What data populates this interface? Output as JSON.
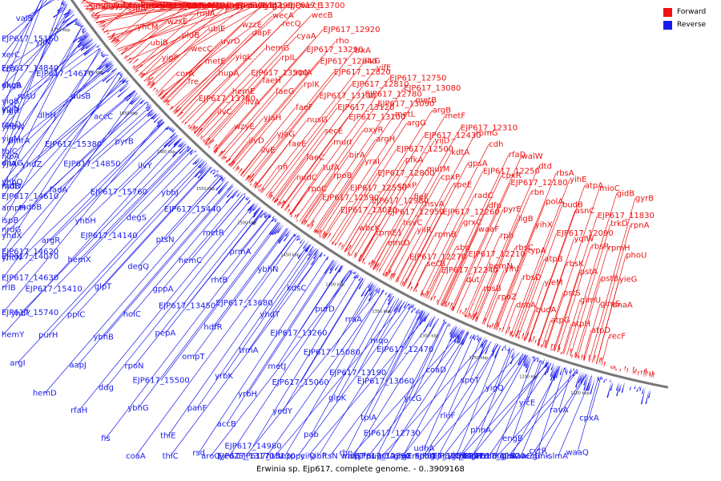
{
  "caption": "Erwinia sp. Ejp617, complete genome. - 0..3909168",
  "legend": [
    {
      "label": "Forward",
      "color": "#ee1111"
    },
    {
      "label": "Reverse",
      "color": "#1a1aee"
    }
  ],
  "scale_ticks": [
    "1150 kbp",
    "1200 kbp",
    "1250 kbp",
    "1300 kbp",
    "1350 kbp",
    "1400 kbp",
    "1450 kbp",
    "1500 kbp",
    "1550 kbp",
    "1600 kbp",
    "1650 kbp",
    "1700 kbp",
    "1750 kbp",
    "1800 kbp"
  ],
  "reverse_genes": [
    "cpxA",
    "waaQ",
    "slmA",
    "gmk",
    "recG",
    "glnA",
    "EJP617_11820",
    "ravA",
    "cytR",
    "waaC",
    "glnG",
    "hslU",
    "cspR",
    "EJP617_12220",
    "yicE",
    "engB",
    "mdtD",
    "budR",
    "glpE",
    "EJP617_12300",
    "spoU",
    "yigQ",
    "phnA",
    "yicH",
    "glnL",
    "mobA",
    "glpX",
    "EJP617_12290",
    "spoT",
    "rluF",
    "udhA",
    "argE",
    "priA",
    "fpr",
    "waaL",
    "coaD",
    "yicG",
    "EJP617_12730",
    "nupC",
    "mvpT",
    "ftsN",
    "yiiQ",
    "EJP617_12470",
    "EJP617_13060",
    "tpiA",
    "rbn",
    "yibP",
    "ppc",
    "hslV",
    "mqo",
    "EJP617_13190",
    "glpK",
    "pab",
    "tnp",
    "EJP617_15130",
    "EJP617_13170",
    "rraA",
    "EJP617_15080",
    "EJP617_15060",
    "yedY",
    "EJP617_14980",
    "yedZ",
    "aroQ",
    "purD",
    "EJP617_13260",
    "metJ",
    "yrbH",
    "accB",
    "rsd",
    "thiC",
    "kdsC",
    "yhdT",
    "trmA",
    "yrbK",
    "panF",
    "thiE",
    "coaA",
    "ybhN",
    "EJP617_13680",
    "hdfR",
    "ompT",
    "EJP617_15500",
    "ybhG",
    "fis",
    "prmA",
    "rhtB",
    "EJP617_13450",
    "pepA",
    "rpoN",
    "ddg",
    "rfaH",
    "metR",
    "hemC",
    "gppA",
    "holC",
    "ybhB",
    "aapJ",
    "hemD",
    "EJP617_15440",
    "ptsN",
    "degQ",
    "glpT",
    "ppiC",
    "purH",
    "argI",
    "ybhJ",
    "degS",
    "EJP617_14140",
    "hemX",
    "EJP617_15410",
    "yhdY",
    "hemY",
    "ilvY",
    "EJP617_15760",
    "yhbH",
    "argR",
    "EJP617_14070",
    "rrlB",
    "EJP617_15740",
    "pyrB",
    "EJP617_14850",
    "fadA",
    "mdoB",
    "yhdX",
    "yhcN",
    "EJP617_14630",
    "accC",
    "EJP617_15380",
    "yhdZ",
    "fadB",
    "ampH",
    "nrdG",
    "EJP617_14620",
    "dusB",
    "dlhH",
    "pmrA",
    "yjiA",
    "yhbQ",
    "EJP617_14610",
    "ispB",
    "EJP617_14670",
    "rpsU",
    "yigR",
    "yhbW",
    "tolC",
    "dnaG",
    "nrdD",
    "yjiN",
    "EJP617_14840",
    "yhcB",
    "yigB",
    "rpoD",
    "yigM",
    "nlpA",
    "valS",
    "EJP617_15150",
    "xerC",
    "cca",
    "dkgA",
    "ygiN"
  ],
  "forward_genes": [
    "recF",
    "dnaA",
    "yieG",
    "phoU",
    "rpnA",
    "gyrB",
    "atpD",
    "glmS",
    "pstB",
    "rpmH",
    "trkD",
    "gidB",
    "atpH",
    "glmU",
    "pstA",
    "rbsR",
    "EJP617_11830",
    "mioC",
    "atpG",
    "pstS",
    "rbsK",
    "yqiW",
    "asnC",
    "atpA",
    "budA",
    "yieM",
    "atpB",
    "EJP617_12090",
    "budB",
    "yihE",
    "dsbA",
    "rbsD",
    "typA",
    "yihX",
    "polA",
    "rbsA",
    "rpoZ",
    "yihI",
    "rbsC",
    "ligB",
    "rbn",
    "dtd",
    "rbsB",
    "hemN",
    "rph",
    "pyrE",
    "EJP617_12180",
    "walW",
    "dut",
    "EJP617_12210",
    "waaF",
    "dfp",
    "cpxR",
    "rfaD",
    "EJP617_12240",
    "sbp",
    "grxC",
    "radC",
    "EJP617_12250",
    "cdh",
    "secB",
    "rpmB",
    "EJP617_12260",
    "speE",
    "gpsA",
    "rpmG",
    "EJP617_12270",
    "yiiR",
    "hsvA",
    "cpxP",
    "kdtA",
    "EJP617_12310",
    "emrD",
    "hsvC",
    "fieF",
    "mutM",
    "yijD",
    "metF",
    "rpmE1",
    "EJP617_12950",
    "cpxP",
    "pfkA",
    "EJP617_12430",
    "argB",
    "wbcK",
    "EJP617_12980",
    "EJP617_12800",
    "EJP617_12500",
    "argG",
    "metB",
    "EJP617_13070",
    "EJP617_12530",
    "yraI",
    "argH",
    "metL",
    "EJP617_13080",
    "EJP617_12590",
    "rpoB",
    "birA",
    "oxyR",
    "EJP617_13090",
    "EJP617_12750",
    "rpoC",
    "tufA",
    "murI",
    "EJP617_13100",
    "EJP617_12780",
    "yifE",
    "nudC",
    "faeC",
    "secE",
    "EJP617_13120",
    "EJP617_12810",
    "ilvG",
    "nfi",
    "faeE",
    "nusG",
    "EJP617_13130",
    "EJP617_12820",
    "trxA",
    "ilvE",
    "yjaG",
    "faeF",
    "rplK",
    "EJP617_12840",
    "rho",
    "ilvD",
    "yjaH",
    "faeG",
    "rplA",
    "EJP617_13290",
    "EJP617_12920",
    "wzyE",
    "ilvA",
    "faeH",
    "rplL",
    "cyaA",
    "wecB",
    "ilvC",
    "hemE",
    "EJP617_13500",
    "hemG",
    "recQ",
    "wecE",
    "EJP617_13780",
    "hupA",
    "yigL",
    "dapF",
    "wecA",
    "EJP617_13700",
    "fre",
    "metE",
    "uvrD",
    "wzzE",
    "udp",
    "pepQ",
    "corA",
    "wecC",
    "ubiE",
    "pldA",
    "rmlB",
    "yigZ",
    "yigP",
    "pldB",
    "rmlA",
    "trkH",
    "EJP617_14190",
    "wecD",
    "ubiB",
    "wzxE",
    "tatB",
    "wecF",
    "yhdA",
    "mreB",
    "yhcM",
    "mreC",
    "rplM",
    "mreD",
    "rpsI",
    "yhdE",
    "sspA",
    "cafA",
    "yhdP",
    "tcaB",
    "mdh",
    "arcB",
    "yrbE",
    "mtgA",
    "EJP617_14990",
    "EJP617_15010",
    "truB",
    "pnp",
    "yjgD",
    "nlpI",
    "EJP617_15030",
    "folP",
    "yrbC",
    "glnE",
    "omp",
    "yjgQ",
    "EJP617_15540",
    "deaD"
  ]
}
